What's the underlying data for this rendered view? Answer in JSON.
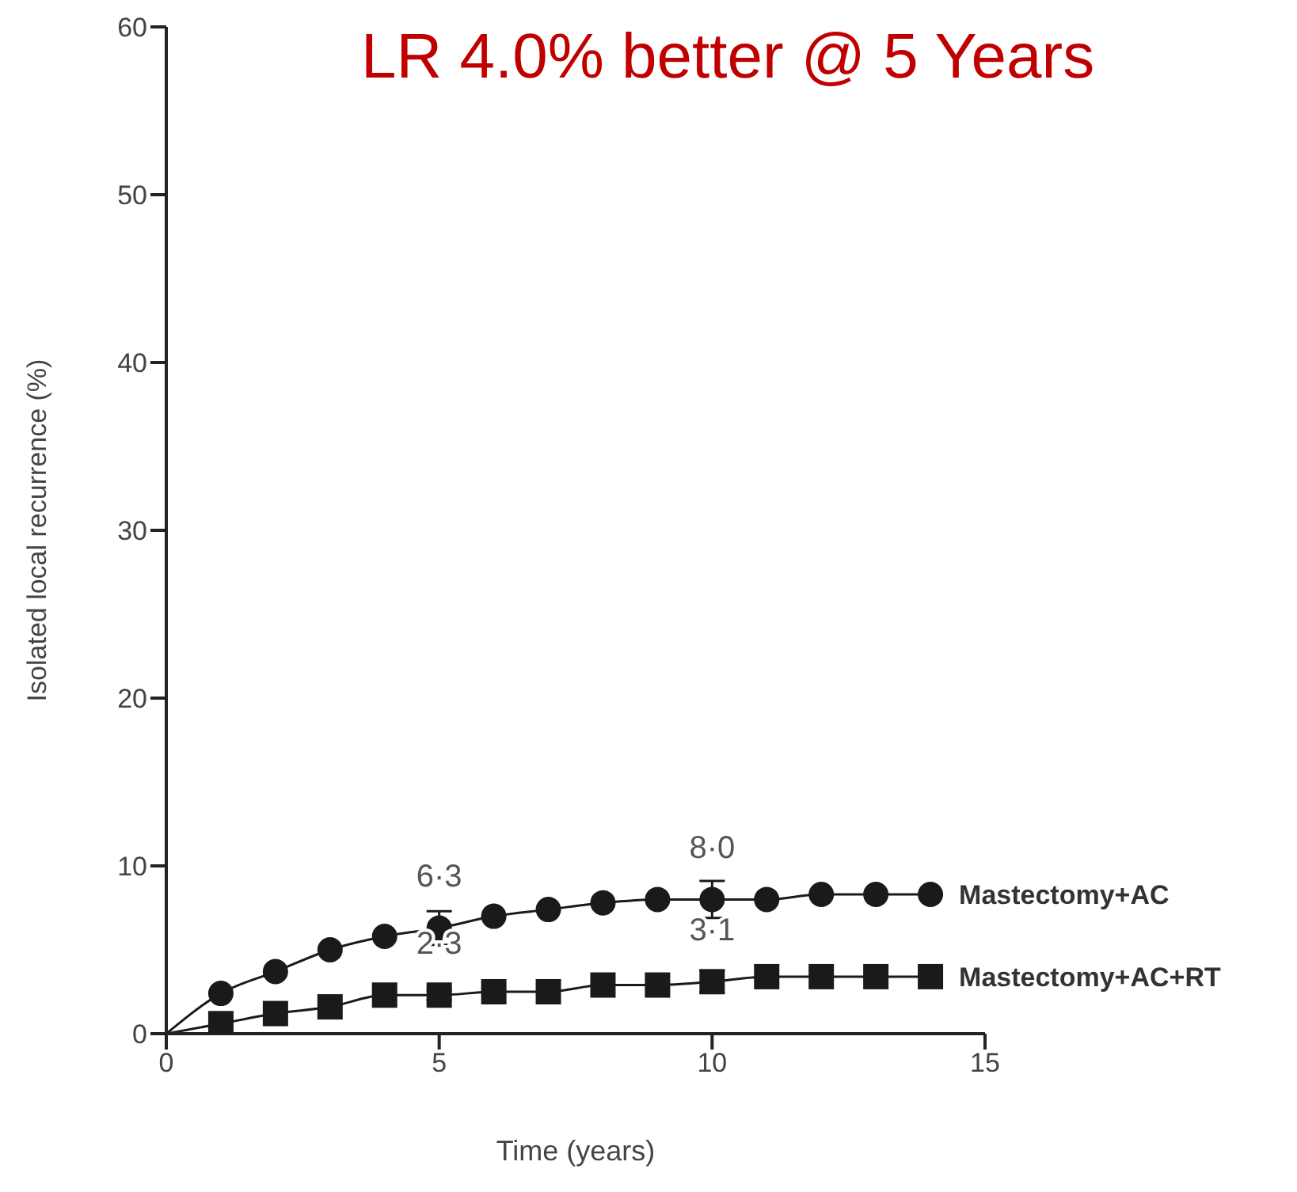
{
  "chart_data": {
    "type": "line",
    "title": "LR 4.0% better @ 5 Years",
    "xlabel": "Time (years)",
    "ylabel": "Isolated local recurrence (%)",
    "x": [
      0,
      1,
      2,
      3,
      4,
      5,
      6,
      7,
      8,
      9,
      10,
      11,
      12,
      13,
      14
    ],
    "series": [
      {
        "name": "Mastectomy+AC",
        "color": "#1a1a1a",
        "marker": "circle",
        "values": [
          0,
          2.4,
          3.7,
          5.0,
          5.8,
          6.3,
          7.0,
          7.4,
          7.8,
          8.0,
          8.0,
          8.0,
          8.3,
          8.3,
          8.3
        ],
        "errors": [
          null,
          null,
          null,
          null,
          null,
          1.0,
          null,
          null,
          null,
          null,
          1.1,
          null,
          null,
          null,
          null
        ],
        "value_labels": [
          null,
          null,
          null,
          null,
          null,
          "6·3",
          null,
          null,
          null,
          null,
          "8·0",
          null,
          null,
          null,
          null
        ]
      },
      {
        "name": "Mastectomy+AC+RT",
        "color": "#1a1a1a",
        "marker": "square",
        "values": [
          0,
          0.6,
          1.2,
          1.6,
          2.3,
          2.3,
          2.5,
          2.5,
          2.9,
          2.9,
          3.1,
          3.4,
          3.4,
          3.4,
          3.4
        ],
        "errors": [
          null,
          null,
          null,
          null,
          null,
          0.3,
          null,
          null,
          null,
          null,
          0.65,
          null,
          null,
          null,
          null
        ],
        "value_labels": [
          null,
          null,
          null,
          null,
          null,
          "2·3",
          null,
          null,
          null,
          null,
          "3·1",
          null,
          null,
          null,
          null
        ]
      }
    ],
    "xlim": [
      0,
      15
    ],
    "xticks": [
      0,
      5,
      10,
      15
    ],
    "ylim": [
      0,
      60
    ],
    "yticks": [
      0,
      10,
      20,
      30,
      40,
      50,
      60
    ],
    "grid": false
  }
}
